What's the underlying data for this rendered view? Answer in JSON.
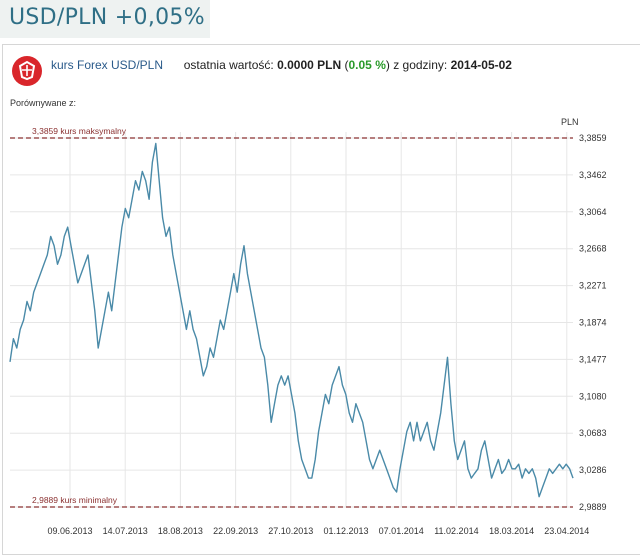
{
  "page_title": "USD/PLN  +0,05%",
  "widget": {
    "instrument_label": "kurs Forex USD/PLN",
    "last_value_label": "ostatnia wartość:",
    "last_value": "0.0000 PLN",
    "change_open": "(",
    "change_value": "0.05 %",
    "change_close": ")",
    "time_label": "z godziny:",
    "date": "2014-05-02",
    "compare_label": "Porównywane z:"
  },
  "colors": {
    "accent": "#2f6f86",
    "line": "#4a8aa8",
    "reference": "#8a3030",
    "logo": "#d9262b",
    "change": "#2a9a2a"
  },
  "chart_data": {
    "type": "line",
    "title": "kurs Forex USD/PLN",
    "ylabel": "PLN",
    "xlabel": "",
    "ylim": [
      2.9889,
      3.3859
    ],
    "y_ticks": [
      "3,3859",
      "3,3462",
      "3,3064",
      "3,2668",
      "3,2271",
      "3,1874",
      "3,1477",
      "3,1080",
      "3,0683",
      "3,0286",
      "2,9889"
    ],
    "x_ticks": [
      "09.06.2013",
      "14.07.2013",
      "18.08.2013",
      "22.09.2013",
      "27.10.2013",
      "01.12.2013",
      "07.01.2014",
      "11.02.2014",
      "18.03.2014",
      "23.04.2014"
    ],
    "reference_lines": [
      {
        "label": "3,3859 kurs maksymalny",
        "value": 3.3859
      },
      {
        "label": "2,9889 kurs minimalny",
        "value": 2.9889
      }
    ],
    "grid": true,
    "series": [
      {
        "name": "USD/PLN",
        "values": [
          3.145,
          3.17,
          3.16,
          3.18,
          3.19,
          3.21,
          3.2,
          3.22,
          3.23,
          3.24,
          3.25,
          3.26,
          3.28,
          3.27,
          3.25,
          3.26,
          3.28,
          3.29,
          3.27,
          3.25,
          3.23,
          3.24,
          3.25,
          3.26,
          3.23,
          3.2,
          3.16,
          3.18,
          3.2,
          3.22,
          3.2,
          3.23,
          3.26,
          3.29,
          3.31,
          3.3,
          3.32,
          3.34,
          3.33,
          3.35,
          3.34,
          3.32,
          3.36,
          3.38,
          3.34,
          3.3,
          3.28,
          3.29,
          3.26,
          3.24,
          3.22,
          3.2,
          3.18,
          3.2,
          3.18,
          3.17,
          3.15,
          3.13,
          3.14,
          3.16,
          3.15,
          3.17,
          3.19,
          3.18,
          3.2,
          3.22,
          3.24,
          3.22,
          3.25,
          3.27,
          3.24,
          3.22,
          3.2,
          3.18,
          3.16,
          3.15,
          3.12,
          3.08,
          3.1,
          3.12,
          3.13,
          3.12,
          3.13,
          3.11,
          3.09,
          3.06,
          3.04,
          3.03,
          3.02,
          3.02,
          3.04,
          3.07,
          3.09,
          3.11,
          3.1,
          3.12,
          3.13,
          3.14,
          3.12,
          3.11,
          3.09,
          3.08,
          3.1,
          3.09,
          3.08,
          3.06,
          3.04,
          3.03,
          3.04,
          3.05,
          3.04,
          3.03,
          3.02,
          3.01,
          3.005,
          3.03,
          3.05,
          3.07,
          3.08,
          3.06,
          3.08,
          3.06,
          3.07,
          3.08,
          3.06,
          3.05,
          3.07,
          3.09,
          3.12,
          3.15,
          3.1,
          3.06,
          3.04,
          3.05,
          3.06,
          3.03,
          3.02,
          3.025,
          3.03,
          3.05,
          3.06,
          3.04,
          3.02,
          3.03,
          3.04,
          3.025,
          3.03,
          3.04,
          3.03,
          3.03,
          3.035,
          3.02,
          3.03,
          3.025,
          3.03,
          3.02,
          3.0,
          3.01,
          3.02,
          3.03,
          3.025,
          3.03,
          3.035,
          3.03,
          3.035,
          3.03,
          3.02
        ]
      }
    ]
  }
}
